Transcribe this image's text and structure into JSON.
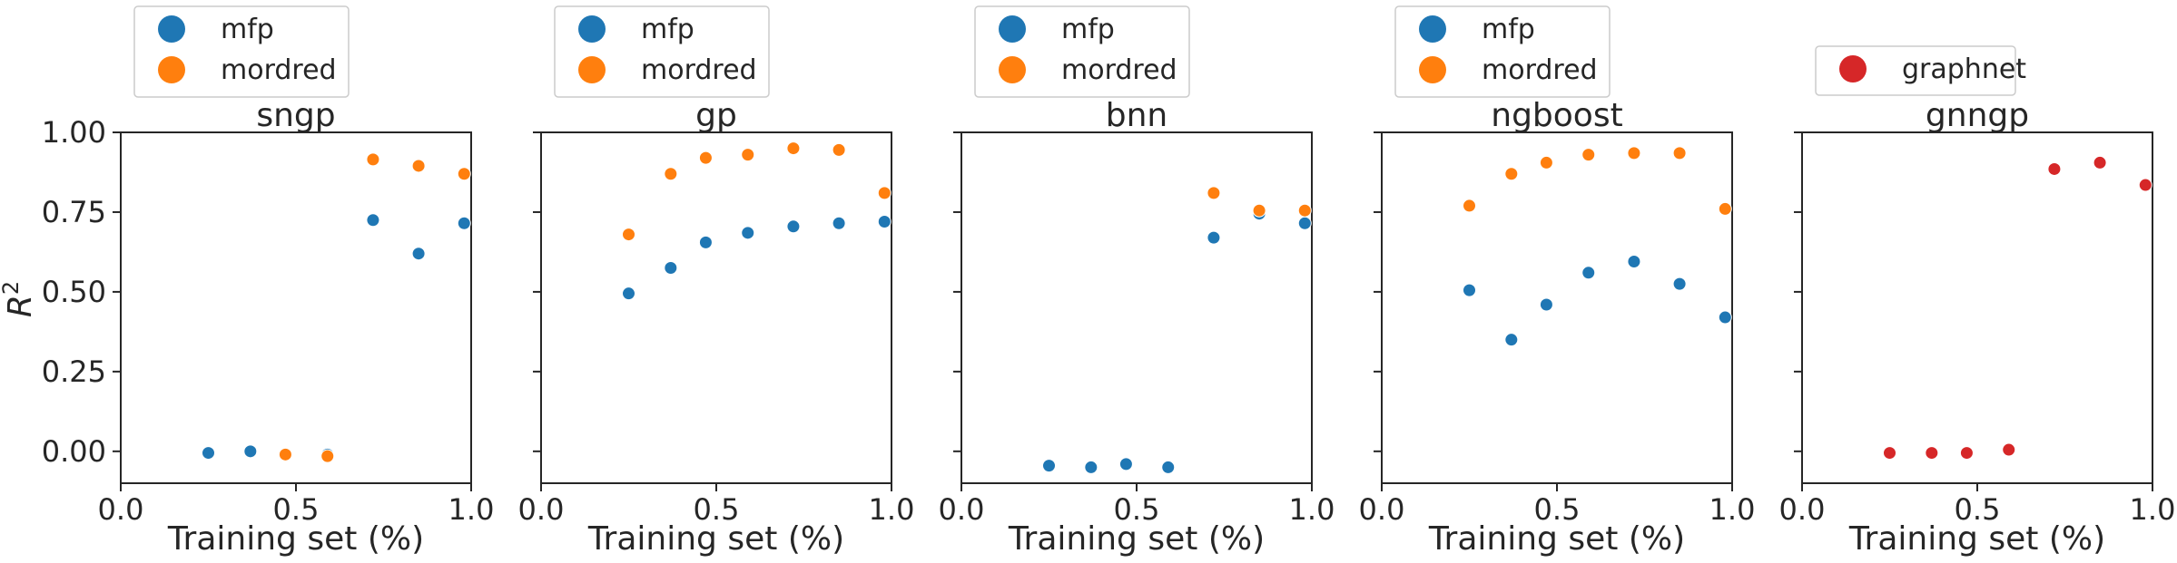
{
  "colors": {
    "mfp": "#1f77b4",
    "mordred": "#ff7f0e",
    "graphnet": "#d62728",
    "axis": "#262626",
    "legend_border": "#cccccc"
  },
  "y_axis_label": "R",
  "y_axis_label_sup": "2",
  "x_axis_label": "Training set (%)",
  "x_ticks": [
    "0.0",
    "0.5",
    "1.0"
  ],
  "y_ticks": [
    "0.00",
    "0.25",
    "0.50",
    "0.75",
    "1.00"
  ],
  "chart_data": [
    {
      "type": "scatter",
      "title": "sngp",
      "xlabel": "Training set (%)",
      "ylabel": "R^2",
      "xlim": [
        0.0,
        1.0
      ],
      "ylim": [
        -0.1,
        1.0
      ],
      "legend": [
        "mfp",
        "mordred"
      ],
      "series": [
        {
          "name": "mfp",
          "x": [
            0.25,
            0.37,
            0.47,
            0.59,
            0.72,
            0.85,
            0.98
          ],
          "y": [
            -0.005,
            0.0,
            -0.01,
            -0.01,
            0.725,
            0.62,
            0.715
          ]
        },
        {
          "name": "mordred",
          "x": [
            0.47,
            0.59,
            0.72,
            0.85,
            0.98
          ],
          "y": [
            -0.01,
            -0.015,
            0.915,
            0.895,
            0.87
          ]
        }
      ]
    },
    {
      "type": "scatter",
      "title": "gp",
      "xlabel": "Training set (%)",
      "xlim": [
        0.0,
        1.0
      ],
      "ylim": [
        -0.1,
        1.0
      ],
      "legend": [
        "mfp",
        "mordred"
      ],
      "series": [
        {
          "name": "mfp",
          "x": [
            0.25,
            0.37,
            0.47,
            0.59,
            0.72,
            0.85,
            0.98
          ],
          "y": [
            0.495,
            0.575,
            0.655,
            0.685,
            0.705,
            0.715,
            0.72
          ]
        },
        {
          "name": "mordred",
          "x": [
            0.25,
            0.37,
            0.47,
            0.59,
            0.72,
            0.85,
            0.98
          ],
          "y": [
            0.68,
            0.87,
            0.92,
            0.93,
            0.95,
            0.945,
            0.81
          ]
        }
      ]
    },
    {
      "type": "scatter",
      "title": "bnn",
      "xlabel": "Training set (%)",
      "xlim": [
        0.0,
        1.0
      ],
      "ylim": [
        -0.1,
        1.0
      ],
      "legend": [
        "mfp",
        "mordred"
      ],
      "series": [
        {
          "name": "mfp",
          "x": [
            0.25,
            0.37,
            0.47,
            0.59,
            0.72,
            0.85,
            0.98
          ],
          "y": [
            -0.045,
            -0.05,
            -0.04,
            -0.05,
            0.67,
            0.745,
            0.715
          ]
        },
        {
          "name": "mordred",
          "x": [
            0.72,
            0.85,
            0.98
          ],
          "y": [
            0.81,
            0.755,
            0.755
          ]
        }
      ]
    },
    {
      "type": "scatter",
      "title": "ngboost",
      "xlabel": "Training set (%)",
      "xlim": [
        0.0,
        1.0
      ],
      "ylim": [
        -0.1,
        1.0
      ],
      "legend": [
        "mfp",
        "mordred"
      ],
      "series": [
        {
          "name": "mfp",
          "x": [
            0.25,
            0.37,
            0.47,
            0.59,
            0.72,
            0.85,
            0.98
          ],
          "y": [
            0.505,
            0.35,
            0.46,
            0.56,
            0.595,
            0.525,
            0.42
          ]
        },
        {
          "name": "mordred",
          "x": [
            0.25,
            0.37,
            0.47,
            0.59,
            0.72,
            0.85,
            0.98
          ],
          "y": [
            0.77,
            0.87,
            0.905,
            0.93,
            0.935,
            0.935,
            0.76
          ]
        }
      ]
    },
    {
      "type": "scatter",
      "title": "gnngp",
      "xlabel": "Training set (%)",
      "xlim": [
        0.0,
        1.0
      ],
      "ylim": [
        -0.1,
        1.0
      ],
      "legend": [
        "graphnet"
      ],
      "series": [
        {
          "name": "graphnet",
          "x": [
            0.25,
            0.37,
            0.47,
            0.59,
            0.72,
            0.85,
            0.98
          ],
          "y": [
            -0.005,
            -0.005,
            -0.005,
            0.005,
            0.885,
            0.905,
            0.835
          ]
        }
      ]
    }
  ]
}
